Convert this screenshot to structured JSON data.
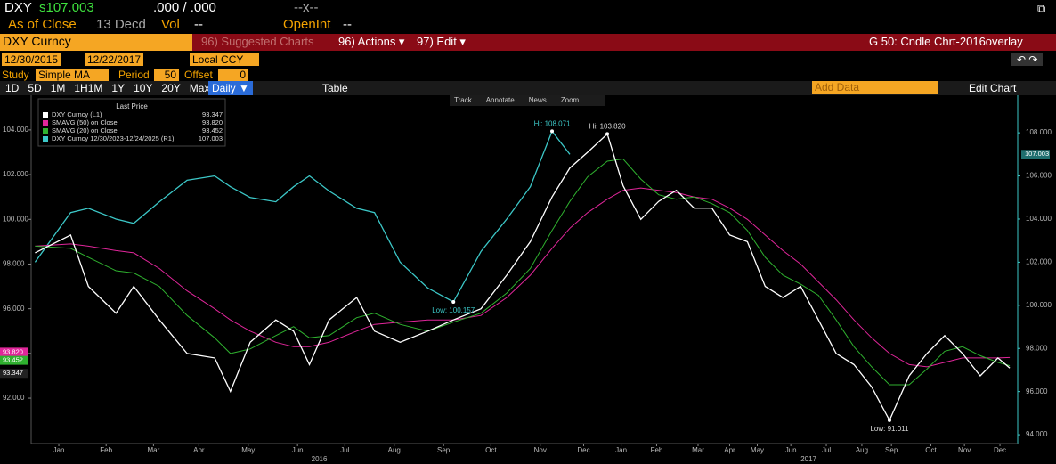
{
  "header": {
    "ticker": "DXY",
    "price": "s107.003",
    "bidask": ".000 / .000",
    "change": "--x--",
    "close_label": "As of Close",
    "decd": "13 Decd",
    "vol_label": "Vol",
    "vol": "--",
    "oi_label": "OpenInt",
    "oi": "--"
  },
  "toolbar": {
    "security": "DXY Curncy",
    "suggested": "96) Suggested Charts",
    "actions": "96) Actions ▾",
    "edit": "97) Edit ▾",
    "chart_name": "G 50: Cndle Chrt-2016overlay",
    "start_date": "12/30/2015",
    "end_date": "12/22/2017",
    "currency": "Local CCY",
    "study_label": "Study",
    "study": "Simple MA",
    "period_label": "Period",
    "period": "50",
    "offset_label": "Offset",
    "offset": "0",
    "ranges": [
      "1D",
      "5D",
      "1M",
      "1H1M",
      "1Y",
      "10Y",
      "20Y",
      "Max"
    ],
    "frequency": "Daily ▼",
    "table": "Table",
    "add_data": "Add Data",
    "edit_chart": "Edit Chart",
    "chart_tools": [
      "Track",
      "Annotate",
      "News",
      "Zoom"
    ]
  },
  "chart_data": {
    "type": "line",
    "legend_title": "Last Price",
    "x": [
      2,
      20,
      29,
      43,
      52,
      65,
      79,
      93,
      101,
      111,
      124,
      133,
      141,
      151,
      165,
      174,
      187,
      201,
      214,
      228,
      241,
      253,
      264,
      273,
      282,
      292,
      300,
      309,
      318,
      327,
      336,
      345,
      354,
      363,
      372,
      381,
      390,
      399,
      408,
      417,
      426,
      435,
      445,
      454,
      463,
      472,
      481,
      490,
      496
    ],
    "xlim": [
      0,
      500
    ],
    "xticks": [
      {
        "value": 14,
        "label": "Jan"
      },
      {
        "value": 38,
        "label": "Feb"
      },
      {
        "value": 62,
        "label": "Mar"
      },
      {
        "value": 85,
        "label": "Apr"
      },
      {
        "value": 110,
        "label": "May"
      },
      {
        "value": 135,
        "label": "Jun"
      },
      {
        "value": 159,
        "label": "Jul"
      },
      {
        "value": 184,
        "label": "Aug"
      },
      {
        "value": 209,
        "label": "Sep"
      },
      {
        "value": 233,
        "label": "Oct"
      },
      {
        "value": 258,
        "label": "Nov"
      },
      {
        "value": 280,
        "label": "Dec"
      },
      {
        "value": 299,
        "label": "Jan"
      },
      {
        "value": 317,
        "label": "Feb"
      },
      {
        "value": 338,
        "label": "Mar"
      },
      {
        "value": 354,
        "label": "Apr"
      },
      {
        "value": 368,
        "label": "May"
      },
      {
        "value": 385,
        "label": "Jun"
      },
      {
        "value": 403,
        "label": "Jul"
      },
      {
        "value": 421,
        "label": "Aug"
      },
      {
        "value": 436,
        "label": "Sep"
      },
      {
        "value": 456,
        "label": "Oct"
      },
      {
        "value": 473,
        "label": "Nov"
      },
      {
        "value": 491,
        "label": "Dec"
      }
    ],
    "year_ticks": [
      {
        "value": 146,
        "label": "2016"
      },
      {
        "value": 394,
        "label": "2017"
      }
    ],
    "ylim": [
      89.97,
      105.55
    ],
    "yticks": [
      {
        "value": 92,
        "label": "92.000"
      },
      {
        "value": 94,
        "label": "94.000"
      },
      {
        "value": 96,
        "label": "96.000"
      },
      {
        "value": 98,
        "label": "98.000"
      },
      {
        "value": 100,
        "label": "100.000"
      },
      {
        "value": 102,
        "label": "102.000"
      },
      {
        "value": 104,
        "label": "104.000"
      }
    ],
    "y2lim": [
      93.59,
      109.74
    ],
    "y2ticks": [
      {
        "value": 94,
        "label": "94.000"
      },
      {
        "value": 96,
        "label": "96.000"
      },
      {
        "value": 98,
        "label": "98.000"
      },
      {
        "value": 100,
        "label": "100.000"
      },
      {
        "value": 102,
        "label": "102.000"
      },
      {
        "value": 104,
        "label": "104.000"
      },
      {
        "value": 106,
        "label": "106.000"
      },
      {
        "value": 108,
        "label": "108.000"
      }
    ],
    "series": [
      {
        "name": "DXY Curncy  (L1)",
        "color": "#ffffff",
        "last_label": "93.347",
        "values": [
          98.5,
          99.3,
          97.0,
          95.8,
          97.0,
          95.5,
          94.0,
          93.8,
          92.3,
          94.5,
          95.5,
          95.0,
          93.5,
          95.5,
          96.5,
          95.0,
          94.5,
          95.0,
          95.5,
          96.0,
          97.5,
          99.0,
          101.0,
          102.3,
          103.0,
          103.82,
          101.5,
          100.0,
          100.8,
          101.3,
          100.5,
          100.5,
          99.3,
          99.0,
          97.0,
          96.5,
          97.0,
          95.5,
          94.0,
          93.5,
          92.5,
          91.011,
          93.0,
          94.0,
          94.8,
          94.0,
          93.0,
          93.8,
          93.347
        ]
      },
      {
        "name": "SMAVG (50)  on Close",
        "color": "#e0269a",
        "last_label": "93.820",
        "values": [
          98.8,
          98.9,
          98.8,
          98.6,
          98.5,
          97.8,
          96.8,
          96.0,
          95.5,
          95.0,
          94.5,
          94.3,
          94.3,
          94.5,
          95.0,
          95.3,
          95.4,
          95.5,
          95.5,
          95.7,
          96.5,
          97.5,
          98.7,
          99.6,
          100.3,
          100.9,
          101.3,
          101.4,
          101.3,
          101.2,
          101.0,
          100.9,
          100.5,
          100.0,
          99.3,
          98.6,
          98.0,
          97.2,
          96.4,
          95.5,
          94.7,
          94.0,
          93.5,
          93.4,
          93.6,
          93.8,
          93.8,
          93.8,
          93.82
        ]
      },
      {
        "name": "SMAVG (20)  on Close",
        "color": "#2fb12f",
        "last_label": "93.452",
        "values": [
          98.8,
          98.7,
          98.3,
          97.7,
          97.6,
          97.0,
          95.7,
          94.7,
          94.0,
          94.2,
          94.8,
          95.2,
          94.7,
          94.8,
          95.6,
          95.8,
          95.3,
          95.0,
          95.4,
          95.8,
          96.7,
          97.8,
          99.5,
          100.8,
          101.9,
          102.6,
          102.7,
          101.8,
          101.1,
          100.9,
          101.0,
          100.7,
          100.3,
          99.5,
          98.3,
          97.5,
          97.1,
          96.6,
          95.5,
          94.3,
          93.4,
          92.6,
          92.6,
          93.3,
          94.1,
          94.3,
          93.9,
          93.6,
          93.452
        ]
      },
      {
        "name": "DXY Curncy 12/30/2023-12/24/2025  (R1)",
        "color": "#3cc8c8",
        "axis": "y2",
        "last_label": "107.003",
        "values": [
          102.0,
          104.3,
          104.5,
          104.0,
          103.8,
          104.8,
          105.8,
          106.0,
          105.5,
          105.0,
          104.8,
          105.5,
          106.0,
          105.3,
          104.5,
          104.3,
          102.0,
          100.8,
          100.157,
          102.5,
          104.0,
          105.5,
          108.071,
          107.003,
          null,
          null,
          null,
          null,
          null,
          null,
          null,
          null,
          null,
          null,
          null,
          null,
          null,
          null,
          null,
          null,
          null,
          null,
          null,
          null,
          null,
          null,
          null,
          null,
          null
        ]
      }
    ],
    "annotations": [
      {
        "label": "Hi: 108.071",
        "value": 108.071,
        "x": 264,
        "axis": "y2"
      },
      {
        "label": "Hi: 103.820",
        "value": 103.82,
        "x": 292
      },
      {
        "label": "Low: 100.157",
        "value": 100.157,
        "x": 214,
        "axis": "y2"
      },
      {
        "label": "Low: 91.011",
        "value": 91.011,
        "x": 435
      }
    ]
  }
}
